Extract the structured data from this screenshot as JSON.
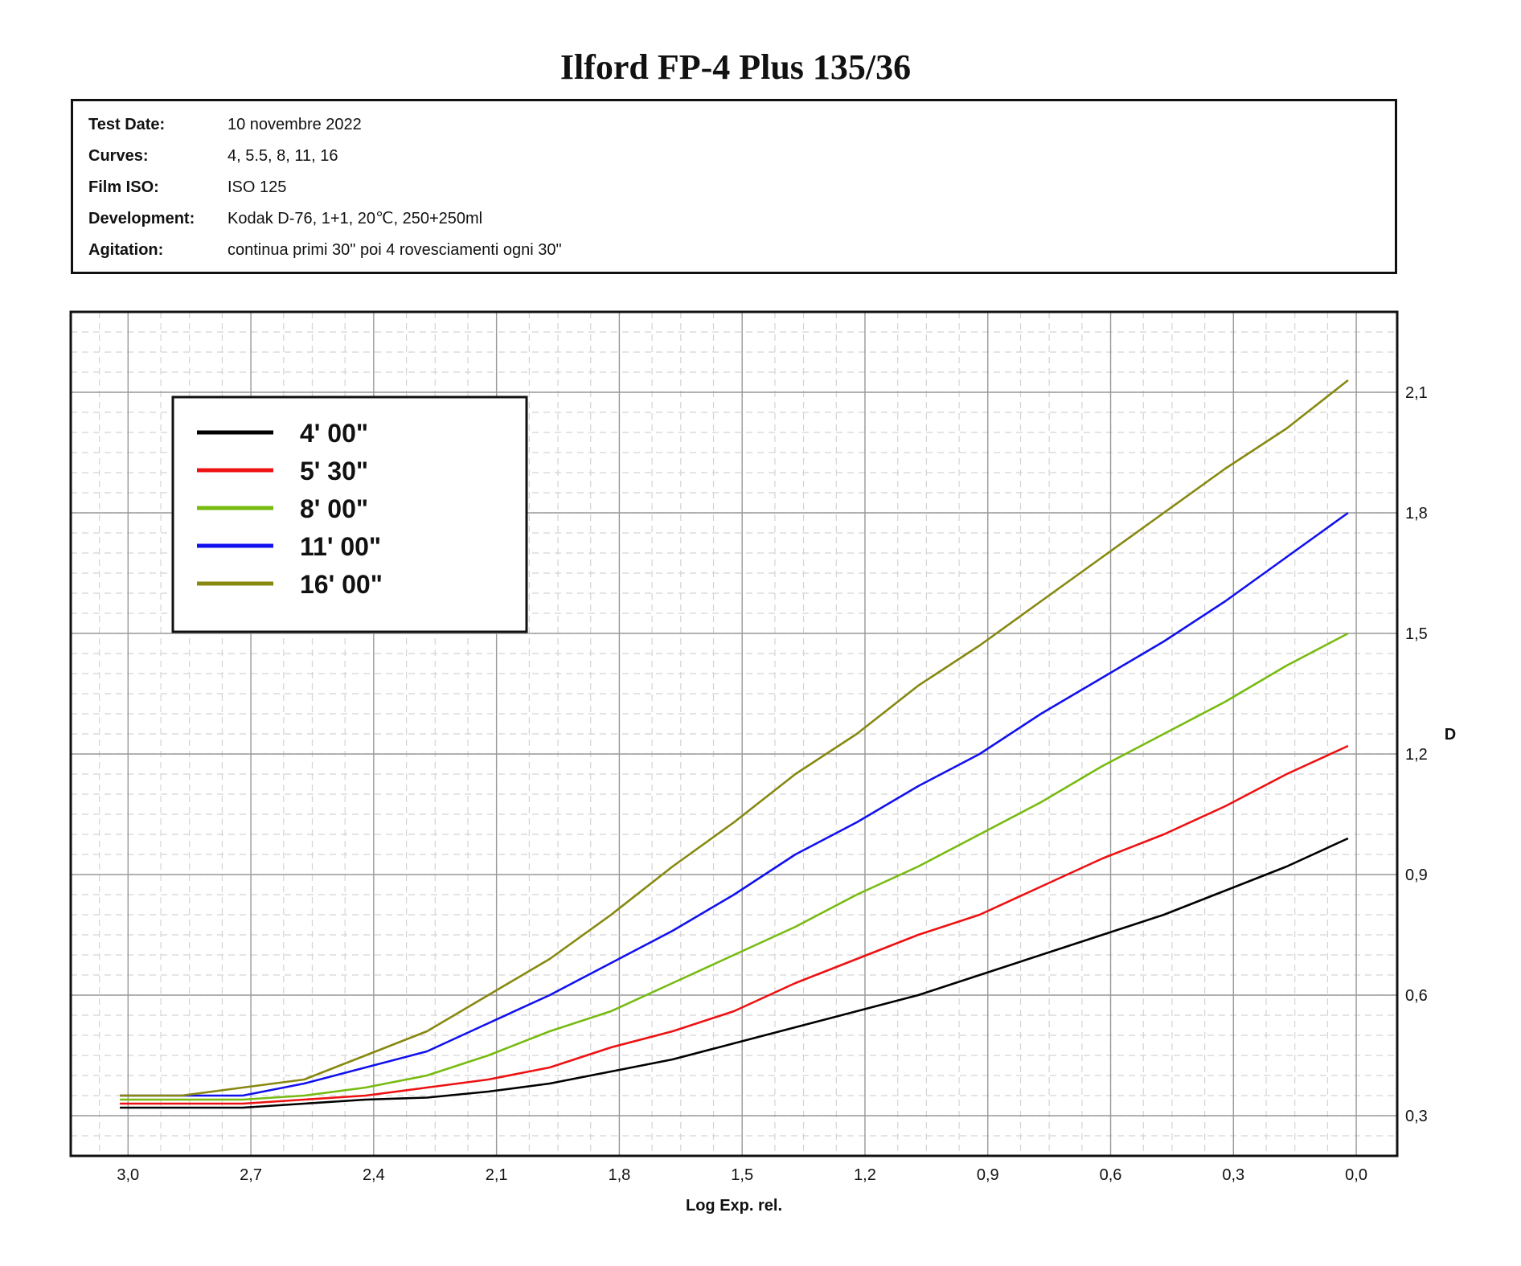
{
  "title": "Ilford FP-4 Plus 135/36",
  "info": [
    {
      "key": "Test Date:",
      "value": "10 novembre 2022"
    },
    {
      "key": "Curves:",
      "value": "4, 5.5, 8, 11, 16"
    },
    {
      "key": "Film ISO:",
      "value": "ISO 125"
    },
    {
      "key": "Development:",
      "value": "Kodak D-76, 1+1, 20℃, 250+250ml"
    },
    {
      "key": "Agitation:",
      "value": "continua primi 30\" poi 4 rovesciamenti ogni 30\""
    }
  ],
  "chart_data": {
    "type": "line",
    "xlabel": "Log Exp. rel.",
    "ylabel": "D",
    "x_reversed": true,
    "xlim": [
      3.14,
      -0.1
    ],
    "ylim": [
      0.2,
      2.3
    ],
    "x_ticks": [
      3.0,
      2.7,
      2.4,
      2.1,
      1.8,
      1.5,
      1.2,
      0.9,
      0.6,
      0.3,
      0.0
    ],
    "x_tick_labels": [
      "3,0",
      "2,7",
      "2,4",
      "2,1",
      "1,8",
      "1,5",
      "1,2",
      "0,9",
      "0,6",
      "0,3",
      "0,0"
    ],
    "y_ticks": [
      0.3,
      0.6,
      0.9,
      1.2,
      1.5,
      1.8,
      2.1
    ],
    "y_tick_labels": [
      "0,3",
      "0,6",
      "0,9",
      "1,2",
      "1,5",
      "1,8",
      "2,1"
    ],
    "y_axis_side": "right",
    "grid": true,
    "legend_position": "top-left",
    "x": [
      3.02,
      2.87,
      2.72,
      2.57,
      2.42,
      2.27,
      2.12,
      1.97,
      1.82,
      1.67,
      1.52,
      1.37,
      1.22,
      1.07,
      0.92,
      0.77,
      0.62,
      0.47,
      0.32,
      0.17,
      0.02
    ],
    "series": [
      {
        "name": "4' 00\"",
        "color": "#000000",
        "values": [
          0.32,
          0.32,
          0.32,
          0.33,
          0.34,
          0.345,
          0.36,
          0.38,
          0.41,
          0.44,
          0.48,
          0.52,
          0.56,
          0.6,
          0.65,
          0.7,
          0.75,
          0.8,
          0.86,
          0.92,
          0.99
        ]
      },
      {
        "name": "5' 30\"",
        "color": "#ee1111",
        "values": [
          0.33,
          0.33,
          0.33,
          0.34,
          0.35,
          0.37,
          0.39,
          0.42,
          0.47,
          0.51,
          0.56,
          0.63,
          0.69,
          0.75,
          0.8,
          0.87,
          0.94,
          1.0,
          1.07,
          1.15,
          1.22
        ]
      },
      {
        "name": "8' 00\"",
        "color": "#77bb11",
        "values": [
          0.34,
          0.34,
          0.34,
          0.35,
          0.37,
          0.4,
          0.45,
          0.51,
          0.56,
          0.63,
          0.7,
          0.77,
          0.85,
          0.92,
          1.0,
          1.08,
          1.17,
          1.25,
          1.33,
          1.42,
          1.5
        ]
      },
      {
        "name": "11' 00\"",
        "color": "#1111ee",
        "values": [
          0.35,
          0.35,
          0.35,
          0.38,
          0.42,
          0.46,
          0.53,
          0.6,
          0.68,
          0.76,
          0.85,
          0.95,
          1.03,
          1.12,
          1.2,
          1.3,
          1.39,
          1.48,
          1.58,
          1.69,
          1.8
        ]
      },
      {
        "name": "16' 00\"",
        "color": "#888811",
        "values": [
          0.35,
          0.35,
          0.37,
          0.39,
          0.45,
          0.51,
          0.6,
          0.69,
          0.8,
          0.92,
          1.03,
          1.15,
          1.25,
          1.37,
          1.47,
          1.58,
          1.69,
          1.8,
          1.91,
          2.01,
          2.13
        ]
      }
    ]
  }
}
